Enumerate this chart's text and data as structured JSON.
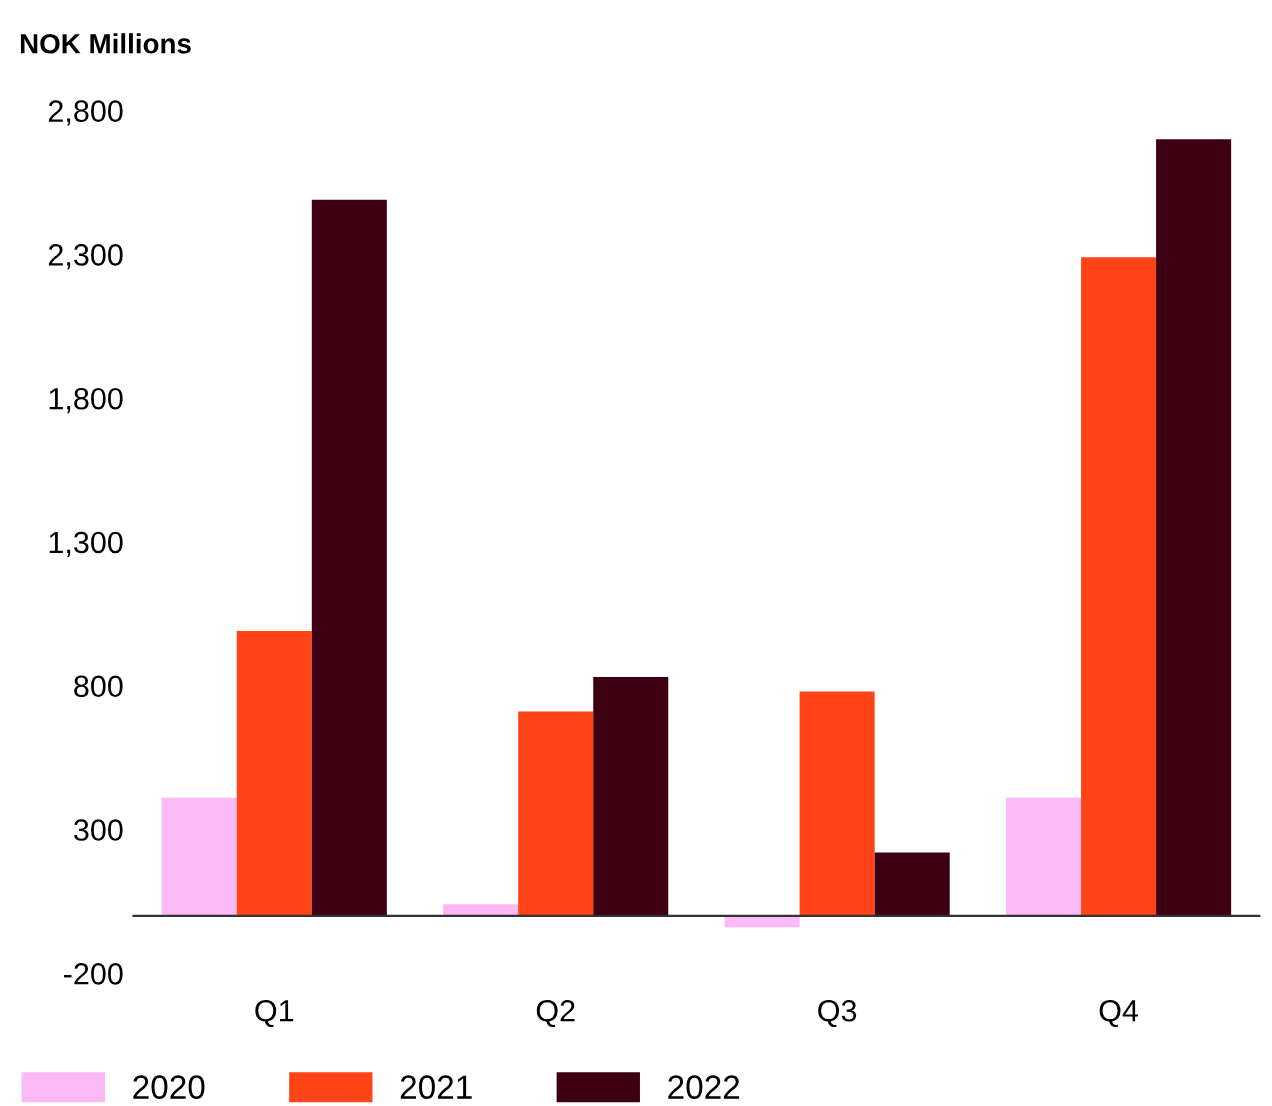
{
  "chart_data": {
    "type": "bar",
    "title": "NOK Millions",
    "categories": [
      "Q1",
      "Q2",
      "Q3",
      "Q4"
    ],
    "series": [
      {
        "name": "2020",
        "color": "#fbb9f5",
        "values": [
          410,
          40,
          -40,
          410
        ]
      },
      {
        "name": "2021",
        "color": "#ff4517",
        "values": [
          990,
          710,
          780,
          2290
        ]
      },
      {
        "name": "2022",
        "color": "#3d0012",
        "values": [
          2490,
          830,
          220,
          2700
        ]
      }
    ],
    "ylim": [
      -200,
      2800
    ],
    "yticks": [
      {
        "value": -200,
        "label": "-200"
      },
      300,
      800,
      {
        "value": 1300,
        "label": "1,300"
      },
      {
        "value": 1800,
        "label": "1,800"
      },
      {
        "value": 2300,
        "label": "2,300"
      },
      {
        "value": 2800,
        "label": "2,800"
      }
    ],
    "grid": false,
    "legend": "bottom"
  }
}
